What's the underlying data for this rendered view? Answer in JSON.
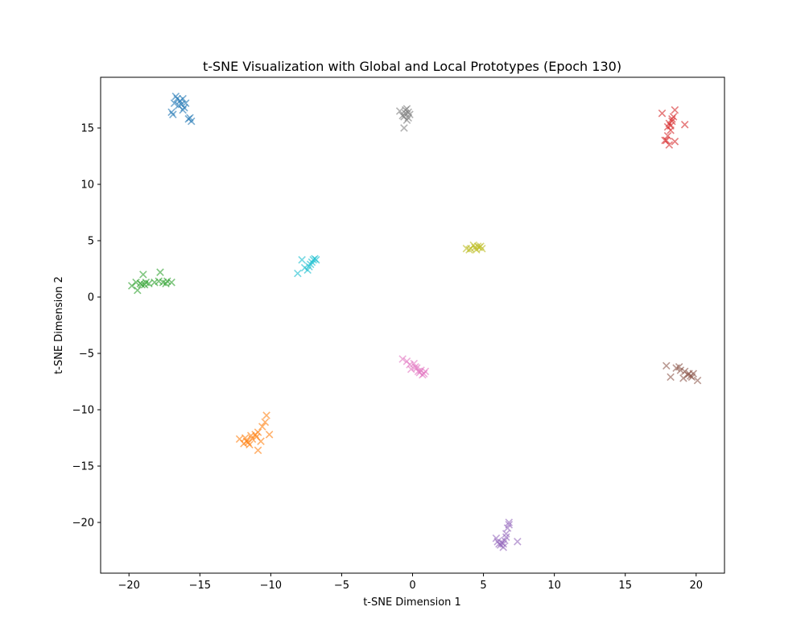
{
  "chart_data": {
    "type": "scatter",
    "title": "t-SNE Visualization with Global and Local Prototypes (Epoch 130)",
    "xlabel": "t-SNE Dimension 1",
    "ylabel": "t-SNE Dimension 2",
    "xlim": [
      -22,
      22
    ],
    "ylim": [
      -24.5,
      19.5
    ],
    "xticks": [
      -20,
      -15,
      -10,
      -5,
      0,
      5,
      10,
      15,
      20
    ],
    "yticks": [
      -20,
      -15,
      -10,
      -5,
      0,
      5,
      10,
      15
    ],
    "xtick_labels": [
      "−20",
      "−15",
      "−10",
      "−5",
      "0",
      "5",
      "10",
      "15",
      "20"
    ],
    "ytick_labels": [
      "−20",
      "−15",
      "−10",
      "−5",
      "0",
      "5",
      "10",
      "15"
    ],
    "grid": false,
    "marker": "x",
    "series": [
      {
        "color": "#1f77b4",
        "points": [
          [
            -16.6,
            17.6
          ],
          [
            -16.4,
            17.4
          ],
          [
            -16.2,
            17.6
          ],
          [
            -16.5,
            17.0
          ],
          [
            -16.3,
            17.1
          ],
          [
            -16.1,
            16.8
          ],
          [
            -16.7,
            17.8
          ],
          [
            -16.0,
            17.2
          ],
          [
            -16.8,
            17.2
          ],
          [
            -17.0,
            16.4
          ],
          [
            -16.9,
            16.2
          ],
          [
            -15.7,
            15.9
          ],
          [
            -15.6,
            15.6
          ],
          [
            -16.2,
            16.6
          ],
          [
            -15.8,
            15.8
          ]
        ]
      },
      {
        "color": "#ff7f0e",
        "points": [
          [
            -11.9,
            -13.0
          ],
          [
            -11.6,
            -12.9
          ],
          [
            -11.8,
            -12.5
          ],
          [
            -11.3,
            -12.6
          ],
          [
            -11.1,
            -12.2
          ],
          [
            -10.9,
            -12.0
          ],
          [
            -10.6,
            -11.5
          ],
          [
            -10.3,
            -10.5
          ],
          [
            -10.1,
            -12.2
          ],
          [
            -10.7,
            -12.8
          ],
          [
            -10.9,
            -13.6
          ],
          [
            -12.2,
            -12.6
          ],
          [
            -11.5,
            -13.1
          ],
          [
            -11.4,
            -12.3
          ],
          [
            -10.4,
            -11.1
          ],
          [
            -11.7,
            -12.8
          ],
          [
            -11.0,
            -12.4
          ]
        ]
      },
      {
        "color": "#2ca02c",
        "points": [
          [
            -19.8,
            1.0
          ],
          [
            -19.5,
            1.3
          ],
          [
            -19.4,
            0.6
          ],
          [
            -19.1,
            1.1
          ],
          [
            -19.0,
            2.0
          ],
          [
            -18.8,
            1.3
          ],
          [
            -18.6,
            1.2
          ],
          [
            -18.2,
            1.3
          ],
          [
            -17.8,
            2.2
          ],
          [
            -17.6,
            1.3
          ],
          [
            -17.3,
            1.4
          ],
          [
            -17.0,
            1.3
          ],
          [
            -17.4,
            1.2
          ],
          [
            -18.9,
            1.1
          ],
          [
            -19.2,
            1.2
          ],
          [
            -17.9,
            1.4
          ]
        ]
      },
      {
        "color": "#d62728",
        "points": [
          [
            17.6,
            16.3
          ],
          [
            18.5,
            16.6
          ],
          [
            18.3,
            15.8
          ],
          [
            18.1,
            15.4
          ],
          [
            18.0,
            15.1
          ],
          [
            18.2,
            14.8
          ],
          [
            18.0,
            14.3
          ],
          [
            17.9,
            13.9
          ],
          [
            18.1,
            13.5
          ],
          [
            18.5,
            13.8
          ],
          [
            19.2,
            15.3
          ],
          [
            18.3,
            15.6
          ],
          [
            18.4,
            16.0
          ],
          [
            17.8,
            13.9
          ],
          [
            18.2,
            15.2
          ]
        ]
      },
      {
        "color": "#9467bd",
        "points": [
          [
            6.2,
            -22.0
          ],
          [
            6.4,
            -22.2
          ],
          [
            6.5,
            -21.6
          ],
          [
            6.3,
            -21.8
          ],
          [
            6.6,
            -21.0
          ],
          [
            6.7,
            -20.5
          ],
          [
            6.8,
            -20.0
          ],
          [
            7.4,
            -21.7
          ],
          [
            5.9,
            -21.4
          ],
          [
            6.1,
            -21.9
          ],
          [
            6.6,
            -21.3
          ],
          [
            6.8,
            -20.2
          ],
          [
            6.0,
            -21.7
          ],
          [
            6.4,
            -21.9
          ]
        ]
      },
      {
        "color": "#8c564b",
        "points": [
          [
            17.9,
            -6.1
          ],
          [
            18.2,
            -7.1
          ],
          [
            18.6,
            -6.3
          ],
          [
            18.9,
            -6.5
          ],
          [
            19.2,
            -6.6
          ],
          [
            19.4,
            -6.9
          ],
          [
            19.6,
            -7.0
          ],
          [
            19.8,
            -6.8
          ],
          [
            20.1,
            -7.4
          ],
          [
            19.1,
            -7.2
          ],
          [
            19.5,
            -6.8
          ],
          [
            18.8,
            -6.2
          ],
          [
            19.7,
            -7.1
          ]
        ]
      },
      {
        "color": "#e377c2",
        "points": [
          [
            -0.7,
            -5.5
          ],
          [
            -0.4,
            -5.7
          ],
          [
            -0.2,
            -6.0
          ],
          [
            0.1,
            -5.9
          ],
          [
            0.3,
            -6.3
          ],
          [
            0.6,
            -6.5
          ],
          [
            0.8,
            -6.8
          ],
          [
            0.9,
            -6.6
          ],
          [
            0.4,
            -6.6
          ],
          [
            -0.1,
            -6.4
          ],
          [
            0.5,
            -6.7
          ],
          [
            0.2,
            -6.2
          ],
          [
            0.7,
            -6.9
          ]
        ]
      },
      {
        "color": "#7f7f7f",
        "points": [
          [
            -0.5,
            16.6
          ],
          [
            -0.3,
            16.4
          ],
          [
            -0.6,
            16.0
          ],
          [
            -0.4,
            15.7
          ],
          [
            -0.6,
            15.0
          ],
          [
            -0.9,
            16.5
          ],
          [
            -0.2,
            16.2
          ],
          [
            -0.4,
            16.7
          ],
          [
            -0.5,
            16.3
          ],
          [
            -0.3,
            15.9
          ],
          [
            -0.7,
            16.1
          ]
        ]
      },
      {
        "color": "#bcbd22",
        "points": [
          [
            3.8,
            4.3
          ],
          [
            4.1,
            4.3
          ],
          [
            4.3,
            4.6
          ],
          [
            4.5,
            4.2
          ],
          [
            4.7,
            4.4
          ],
          [
            4.9,
            4.3
          ],
          [
            4.4,
            4.4
          ],
          [
            4.6,
            4.5
          ],
          [
            4.0,
            4.2
          ],
          [
            4.8,
            4.5
          ]
        ]
      },
      {
        "color": "#17becf",
        "points": [
          [
            -8.1,
            2.1
          ],
          [
            -7.6,
            2.6
          ],
          [
            -7.4,
            2.4
          ],
          [
            -7.2,
            2.9
          ],
          [
            -7.0,
            3.3
          ],
          [
            -6.9,
            3.4
          ],
          [
            -7.8,
            3.3
          ],
          [
            -7.1,
            3.1
          ],
          [
            -6.8,
            3.3
          ],
          [
            -7.3,
            2.7
          ]
        ]
      }
    ]
  }
}
